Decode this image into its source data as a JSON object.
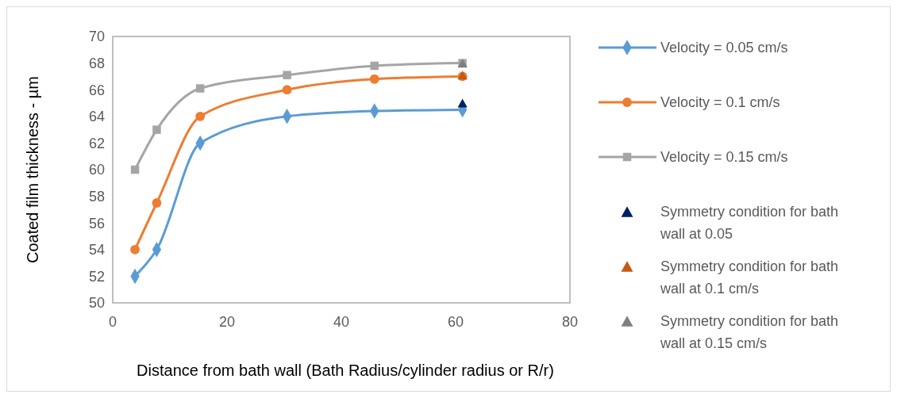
{
  "chart_data": {
    "type": "line",
    "xlabel": "Distance from bath wall (Bath Radius/cylinder radius or R/r)",
    "ylabel": "Coated film thickness - µm",
    "xlim": [
      0,
      80
    ],
    "xticks": [
      0,
      20,
      40,
      60,
      80
    ],
    "ylim": [
      50,
      70
    ],
    "yticks": [
      50,
      52,
      54,
      56,
      58,
      60,
      62,
      64,
      66,
      68,
      70
    ],
    "grid": false,
    "legend": "right",
    "series": [
      {
        "name": "Velocity = 0.05 cm/s",
        "color": "#5b9bd5",
        "marker": "diamond",
        "x": [
          3.9,
          7.7,
          15.3,
          30.5,
          45.8,
          61.2
        ],
        "values": [
          52,
          54,
          62,
          64,
          64.4,
          64.5
        ]
      },
      {
        "name": "Velocity = 0.1 cm/s",
        "color": "#ed7d31",
        "marker": "circle",
        "x": [
          3.9,
          7.7,
          15.3,
          30.5,
          45.8,
          61.2
        ],
        "values": [
          54,
          57.5,
          64,
          66,
          66.8,
          67
        ]
      },
      {
        "name": "Velocity = 0.15 cm/s",
        "color": "#a5a5a5",
        "marker": "square",
        "x": [
          3.9,
          7.7,
          15.3,
          30.5,
          45.8,
          61.2
        ],
        "values": [
          60,
          63,
          66.1,
          67.1,
          67.8,
          68
        ]
      },
      {
        "name": "Symmetry condition for bath wall at 0.05",
        "type": "scatter",
        "color": "#002060",
        "marker": "triangle",
        "x": [
          61.2
        ],
        "values": [
          65
        ]
      },
      {
        "name": "Symmetry condition for bath wall at 0.1 cm/s",
        "type": "scatter",
        "color": "#c55a11",
        "marker": "triangle",
        "x": [
          61.2
        ],
        "values": [
          67.1
        ]
      },
      {
        "name": "Symmetry condition for bath wall at 0.15 cm/s",
        "type": "scatter",
        "color": "#7f7f7f",
        "marker": "triangle",
        "x": [
          61.2
        ],
        "values": [
          68
        ]
      }
    ]
  }
}
